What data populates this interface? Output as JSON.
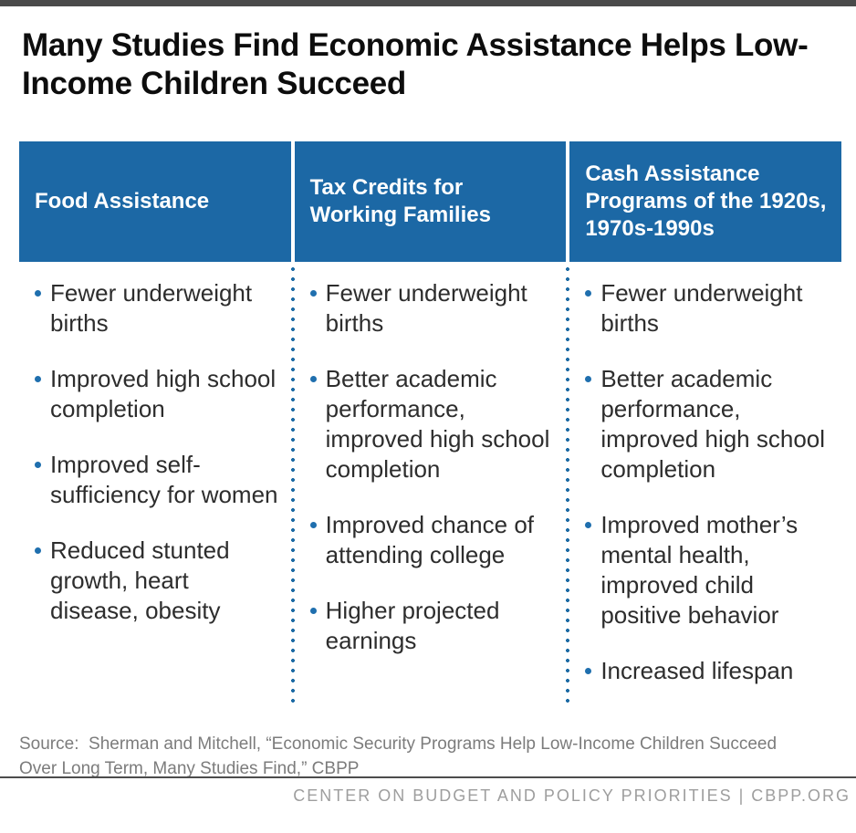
{
  "page": {
    "title": "Many Studies Find Economic Assistance Helps Low-Income Children Succeed",
    "source": "Source:  Sherman and Mitchell, “Economic Security Programs Help Low-Income Children Succeed Over Long Term, Many Studies Find,” CBPP",
    "footer": "CENTER ON BUDGET AND POLICY PRIORITIES | CBPP.ORG"
  },
  "colors": {
    "brand_blue": "#1c68a5",
    "bullet_blue": "#1f6fae",
    "dotted_divider_blue": "#1d6ba5",
    "top_bar_gray": "#4a4a4a",
    "body_text": "#2d2d2d",
    "source_gray": "#7c7c7c",
    "footer_gray": "#9e9e9e"
  },
  "table": {
    "columns": [
      {
        "header": "Food Assistance",
        "items": [
          "Fewer underweight births",
          "Improved high school completion",
          "Improved self-sufficiency for women",
          "Reduced stunted growth, heart disease, obesity"
        ]
      },
      {
        "header": "Tax Credits for Working Families",
        "items": [
          "Fewer underweight births",
          "Better academic performance, improved high school completion",
          "Improved chance of attending college",
          "Higher projected earnings"
        ]
      },
      {
        "header": "Cash Assistance Programs of the 1920s, 1970s-1990s",
        "items": [
          "Fewer underweight births",
          "Better academic performance, improved high school completion",
          "Improved mother’s mental health, improved child positive behavior",
          "Increased lifespan"
        ]
      }
    ]
  }
}
